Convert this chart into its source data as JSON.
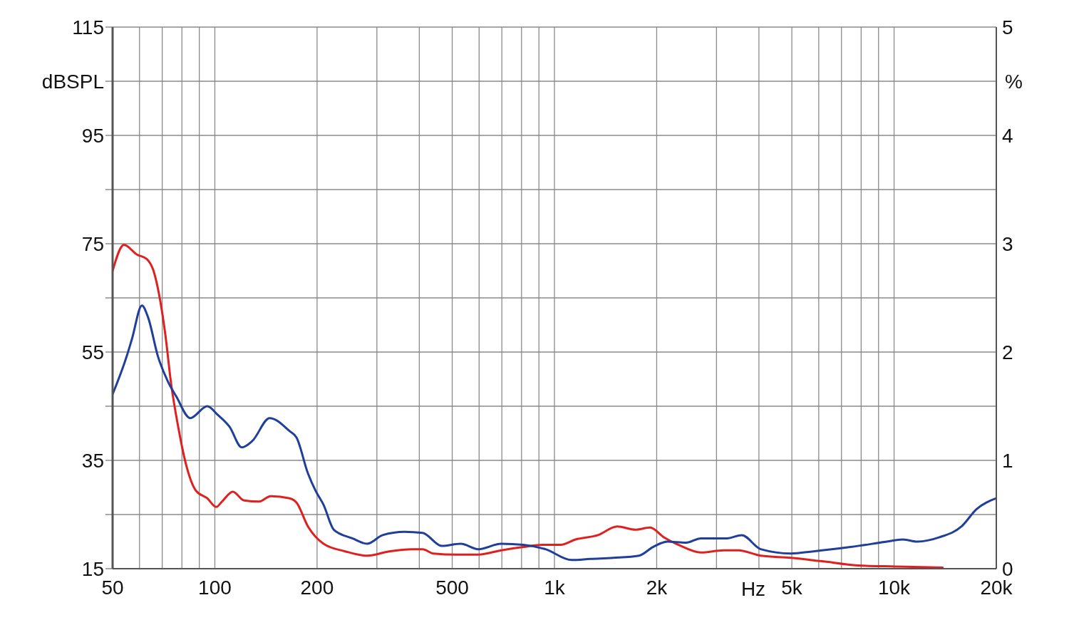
{
  "chart_data": {
    "type": "line",
    "xlabel": "Hz",
    "ylabel": "dBSPL",
    "y2label": "%",
    "log": "x",
    "grid": true,
    "legend": false,
    "xlim": [
      50,
      20000
    ],
    "xticks": [
      50,
      {
        "value": 60,
        "label": null
      },
      {
        "value": 70,
        "label": null
      },
      {
        "value": 80,
        "label": null
      },
      {
        "value": 90,
        "label": null
      },
      100,
      200,
      {
        "value": 300,
        "label": null
      },
      {
        "value": 400,
        "label": null
      },
      500,
      {
        "value": 600,
        "label": null
      },
      {
        "value": 700,
        "label": null
      },
      {
        "value": 800,
        "label": null
      },
      {
        "value": 900,
        "label": null
      },
      {
        "value": 1000,
        "label": "1k"
      },
      {
        "value": 2000,
        "label": "2k"
      },
      {
        "value": 3000,
        "label": null
      },
      {
        "value": 4000,
        "label": null
      },
      {
        "value": 5000,
        "label": "5k"
      },
      {
        "value": 6000,
        "label": null
      },
      {
        "value": 7000,
        "label": null
      },
      {
        "value": 8000,
        "label": null
      },
      {
        "value": 9000,
        "label": null
      },
      {
        "value": 10000,
        "label": "10k"
      },
      {
        "value": 20000,
        "label": "20k"
      }
    ],
    "ylim": [
      15,
      115
    ],
    "yticks": [
      15,
      {
        "value": 25,
        "label": null
      },
      35,
      {
        "value": 45,
        "label": null
      },
      55,
      {
        "value": 65,
        "label": null
      },
      75,
      {
        "value": 85,
        "label": null
      },
      95,
      {
        "value": 105,
        "label": null
      },
      115
    ],
    "y2lim": [
      0,
      5
    ],
    "y2ticks": [
      0,
      1,
      2,
      3,
      4,
      5
    ],
    "series": [
      {
        "color": "#e0201f",
        "axis": "y2",
        "x": [
          50,
          54,
          59,
          63,
          66,
          69,
          71.5,
          74.4,
          78,
          82,
          88,
          95,
          101,
          105,
          113,
          122,
          135,
          146,
          166,
          174,
          188,
          209,
          242,
          281,
          326,
          381,
          409,
          440,
          514,
          597,
          697,
          810,
          923,
          1043,
          1153,
          1343,
          1530,
          1732,
          1912,
          2100,
          2320,
          2700,
          3150,
          3480,
          4050,
          4970,
          6090,
          7840,
          10100,
          13900
        ],
        "values": [
          2.75,
          2.99,
          2.9,
          2.86,
          2.75,
          2.48,
          2.16,
          1.7,
          1.31,
          0.98,
          0.72,
          0.65,
          0.57,
          0.62,
          0.71,
          0.63,
          0.62,
          0.67,
          0.65,
          0.61,
          0.39,
          0.23,
          0.16,
          0.12,
          0.16,
          0.18,
          0.18,
          0.14,
          0.13,
          0.13,
          0.17,
          0.2,
          0.22,
          0.22,
          0.27,
          0.31,
          0.39,
          0.36,
          0.38,
          0.29,
          0.22,
          0.15,
          0.17,
          0.17,
          0.12,
          0.1,
          0.07,
          0.03,
          0.02,
          0.01
        ]
      },
      {
        "color": "#1f3f9a",
        "axis": "y2",
        "x": [
          50,
          55,
          57,
          61,
          63.6,
          68,
          72.7,
          77,
          84.6,
          95,
          102,
          110.5,
          120,
          129,
          145,
          166,
          174,
          188,
          198,
          209,
          224,
          254,
          281,
          312,
          362,
          409,
          466,
          530,
          597,
          697,
          810,
          941,
          1124,
          1276,
          1490,
          1775,
          1950,
          2150,
          2440,
          2700,
          3220,
          3560,
          4050,
          4970,
          5780,
          7440,
          9530,
          10600,
          11700,
          13600,
          15800,
          17500,
          20000
        ],
        "values": [
          1.61,
          1.96,
          2.12,
          2.43,
          2.32,
          1.96,
          1.73,
          1.59,
          1.39,
          1.5,
          1.42,
          1.31,
          1.12,
          1.18,
          1.39,
          1.27,
          1.21,
          0.88,
          0.72,
          0.59,
          0.36,
          0.28,
          0.23,
          0.31,
          0.34,
          0.33,
          0.21,
          0.23,
          0.18,
          0.23,
          0.22,
          0.18,
          0.08,
          0.09,
          0.1,
          0.12,
          0.2,
          0.25,
          0.24,
          0.28,
          0.28,
          0.31,
          0.18,
          0.14,
          0.16,
          0.2,
          0.25,
          0.27,
          0.25,
          0.29,
          0.39,
          0.55,
          0.65
        ]
      }
    ]
  }
}
